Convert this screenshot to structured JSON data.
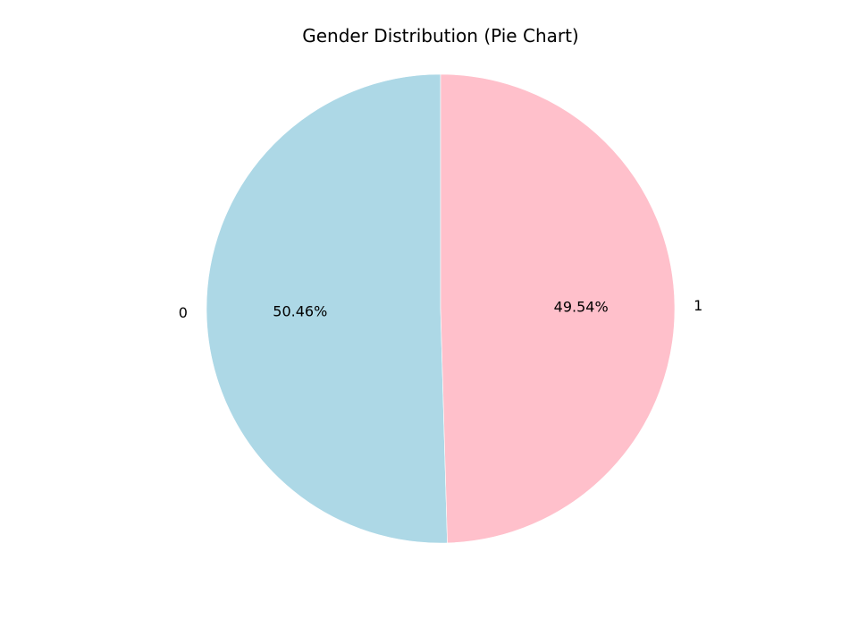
{
  "chart_data": {
    "type": "pie",
    "title": "Gender Distribution (Pie Chart)",
    "labels": [
      "0",
      "1"
    ],
    "values": [
      50.46,
      49.54
    ],
    "pct_labels": [
      "50.46%",
      "49.54%"
    ],
    "colors": [
      "#add8e6",
      "#ffc0cb"
    ],
    "start_angle_deg": 90,
    "direction": "counterclockwise",
    "legend": "none"
  }
}
